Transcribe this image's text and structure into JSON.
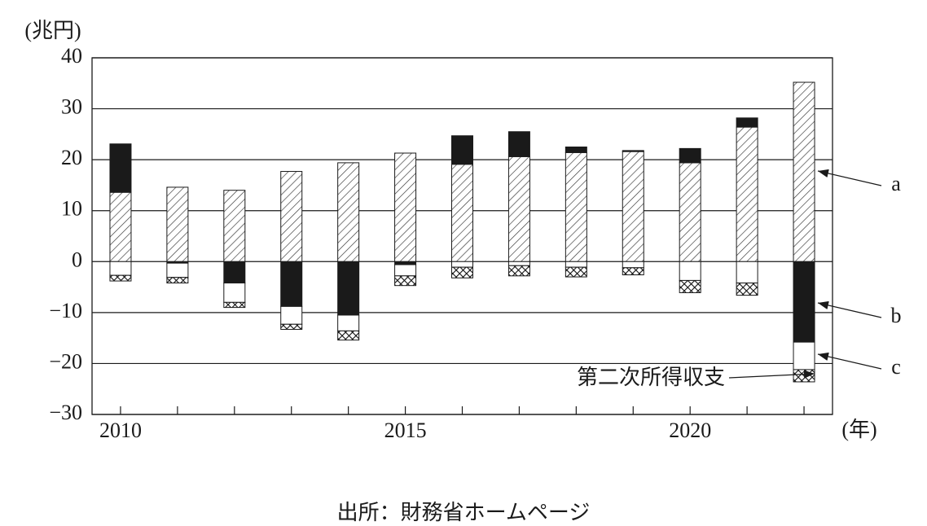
{
  "chart_data": {
    "type": "stacked-bar",
    "y_unit": "(兆円)",
    "x_unit": "(年)",
    "source": "出所：財務省ホームページ",
    "categories": [
      "2010",
      null,
      null,
      null,
      null,
      "2015",
      null,
      null,
      null,
      null,
      "2020",
      null,
      null
    ],
    "series": [
      {
        "name": "a",
        "color": "#ffffff",
        "pattern": "hatch",
        "values": [
          13.6,
          14.6,
          14.0,
          17.7,
          19.4,
          21.3,
          19.1,
          20.6,
          21.4,
          21.6,
          19.4,
          26.4,
          35.2
        ]
      },
      {
        "name": "b",
        "color": "#1a1a1a",
        "pattern": "solid",
        "values": [
          9.5,
          -0.3,
          -4.2,
          -8.8,
          -10.5,
          -0.6,
          5.6,
          4.9,
          1.1,
          0.2,
          2.8,
          1.8,
          -15.8
        ]
      },
      {
        "name": "c",
        "color": "#ffffff",
        "pattern": "solid",
        "values": [
          -2.7,
          -2.8,
          -3.8,
          -3.5,
          -3.1,
          -2.2,
          -1.1,
          -0.8,
          -1.1,
          -1.2,
          -3.7,
          -4.2,
          -5.4
        ]
      },
      {
        "name": "第二次所得収支",
        "color": "#ffffff",
        "pattern": "crosshatch",
        "values": [
          -1.1,
          -1.1,
          -1.0,
          -1.0,
          -1.8,
          -1.9,
          -2.1,
          -2.0,
          -1.9,
          -1.4,
          -2.4,
          -2.4,
          -2.4
        ]
      }
    ],
    "ylim": [
      -30,
      40
    ],
    "yticks": [
      {
        "value": -30,
        "label": "−30"
      },
      {
        "value": -20,
        "label": "−20"
      },
      {
        "value": -10,
        "label": "−10"
      },
      0,
      10,
      20,
      30,
      40
    ],
    "grid": true
  }
}
